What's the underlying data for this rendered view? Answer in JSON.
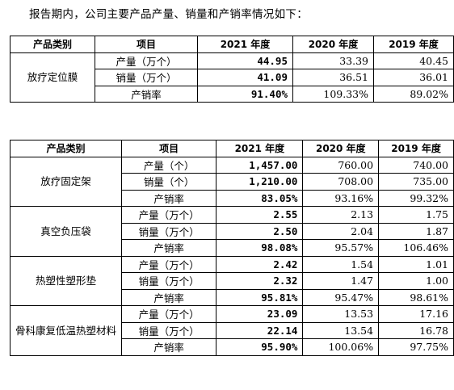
{
  "intro": "报告期内，公司主要产品产量、销量和产销率情况如下：",
  "headers": [
    "产品类别",
    "项目",
    "2021 年度",
    "2020 年度",
    "2019 年度"
  ],
  "table1": {
    "groups": [
      {
        "category": "放疗定位膜",
        "rows": [
          {
            "item": "产量（万个）",
            "y2021": "44.95",
            "y2020": "33.39",
            "y2019": "40.45"
          },
          {
            "item": "销量（万个）",
            "y2021": "41.09",
            "y2020": "36.51",
            "y2019": "36.01"
          },
          {
            "item": "产销率",
            "y2021": "91.40%",
            "y2020": "109.33%",
            "y2019": "89.02%"
          }
        ]
      }
    ]
  },
  "table2": {
    "groups": [
      {
        "category": "放疗固定架",
        "rows": [
          {
            "item": "产量（个）",
            "y2021": "1,457.00",
            "y2020": "760.00",
            "y2019": "740.00"
          },
          {
            "item": "销量（个）",
            "y2021": "1,210.00",
            "y2020": "708.00",
            "y2019": "735.00"
          },
          {
            "item": "产销率",
            "y2021": "83.05%",
            "y2020": "93.16%",
            "y2019": "99.32%"
          }
        ]
      },
      {
        "category": "真空负压袋",
        "rows": [
          {
            "item": "产量（万个）",
            "y2021": "2.55",
            "y2020": "2.13",
            "y2019": "1.75"
          },
          {
            "item": "销量（万个）",
            "y2021": "2.50",
            "y2020": "2.04",
            "y2019": "1.87"
          },
          {
            "item": "产销率",
            "y2021": "98.08%",
            "y2020": "95.57%",
            "y2019": "106.46%"
          }
        ]
      },
      {
        "category": "热塑性塑形垫",
        "rows": [
          {
            "item": "产量（万个）",
            "y2021": "2.42",
            "y2020": "1.54",
            "y2019": "1.01"
          },
          {
            "item": "销量（万个）",
            "y2021": "2.32",
            "y2020": "1.47",
            "y2019": "1.00"
          },
          {
            "item": "产销率",
            "y2021": "95.81%",
            "y2020": "95.47%",
            "y2019": "98.61%"
          }
        ]
      },
      {
        "category": "骨科康复低温热塑材料",
        "rows": [
          {
            "item": "产量（万个）",
            "y2021": "23.09",
            "y2020": "13.53",
            "y2019": "17.16"
          },
          {
            "item": "销量（万个）",
            "y2021": "22.14",
            "y2020": "13.54",
            "y2019": "16.78"
          },
          {
            "item": "产销率",
            "y2021": "95.90%",
            "y2020": "100.06%",
            "y2019": "97.75%"
          }
        ]
      }
    ]
  }
}
